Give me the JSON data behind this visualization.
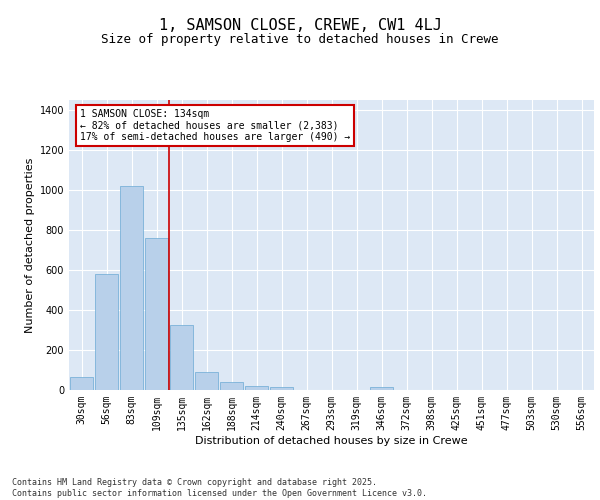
{
  "title": "1, SAMSON CLOSE, CREWE, CW1 4LJ",
  "subtitle": "Size of property relative to detached houses in Crewe",
  "xlabel": "Distribution of detached houses by size in Crewe",
  "ylabel": "Number of detached properties",
  "categories": [
    "30sqm",
    "56sqm",
    "83sqm",
    "109sqm",
    "135sqm",
    "162sqm",
    "188sqm",
    "214sqm",
    "240sqm",
    "267sqm",
    "293sqm",
    "319sqm",
    "346sqm",
    "372sqm",
    "398sqm",
    "425sqm",
    "451sqm",
    "477sqm",
    "503sqm",
    "530sqm",
    "556sqm"
  ],
  "values": [
    65,
    580,
    1020,
    760,
    325,
    90,
    38,
    22,
    14,
    0,
    0,
    0,
    14,
    0,
    0,
    0,
    0,
    0,
    0,
    0,
    0
  ],
  "bar_color": "#b8d0ea",
  "bar_edge_color": "#6aaad4",
  "background_color": "#dde8f5",
  "grid_color": "#ffffff",
  "red_line_index": 4,
  "annotation_text": "1 SAMSON CLOSE: 134sqm\n← 82% of detached houses are smaller (2,383)\n17% of semi-detached houses are larger (490) →",
  "annotation_box_color": "#ffffff",
  "annotation_border_color": "#cc0000",
  "ylim": [
    0,
    1450
  ],
  "yticks": [
    0,
    200,
    400,
    600,
    800,
    1000,
    1200,
    1400
  ],
  "footer_text": "Contains HM Land Registry data © Crown copyright and database right 2025.\nContains public sector information licensed under the Open Government Licence v3.0.",
  "title_fontsize": 11,
  "subtitle_fontsize": 9,
  "axis_label_fontsize": 8,
  "tick_fontsize": 7,
  "annotation_fontsize": 7
}
